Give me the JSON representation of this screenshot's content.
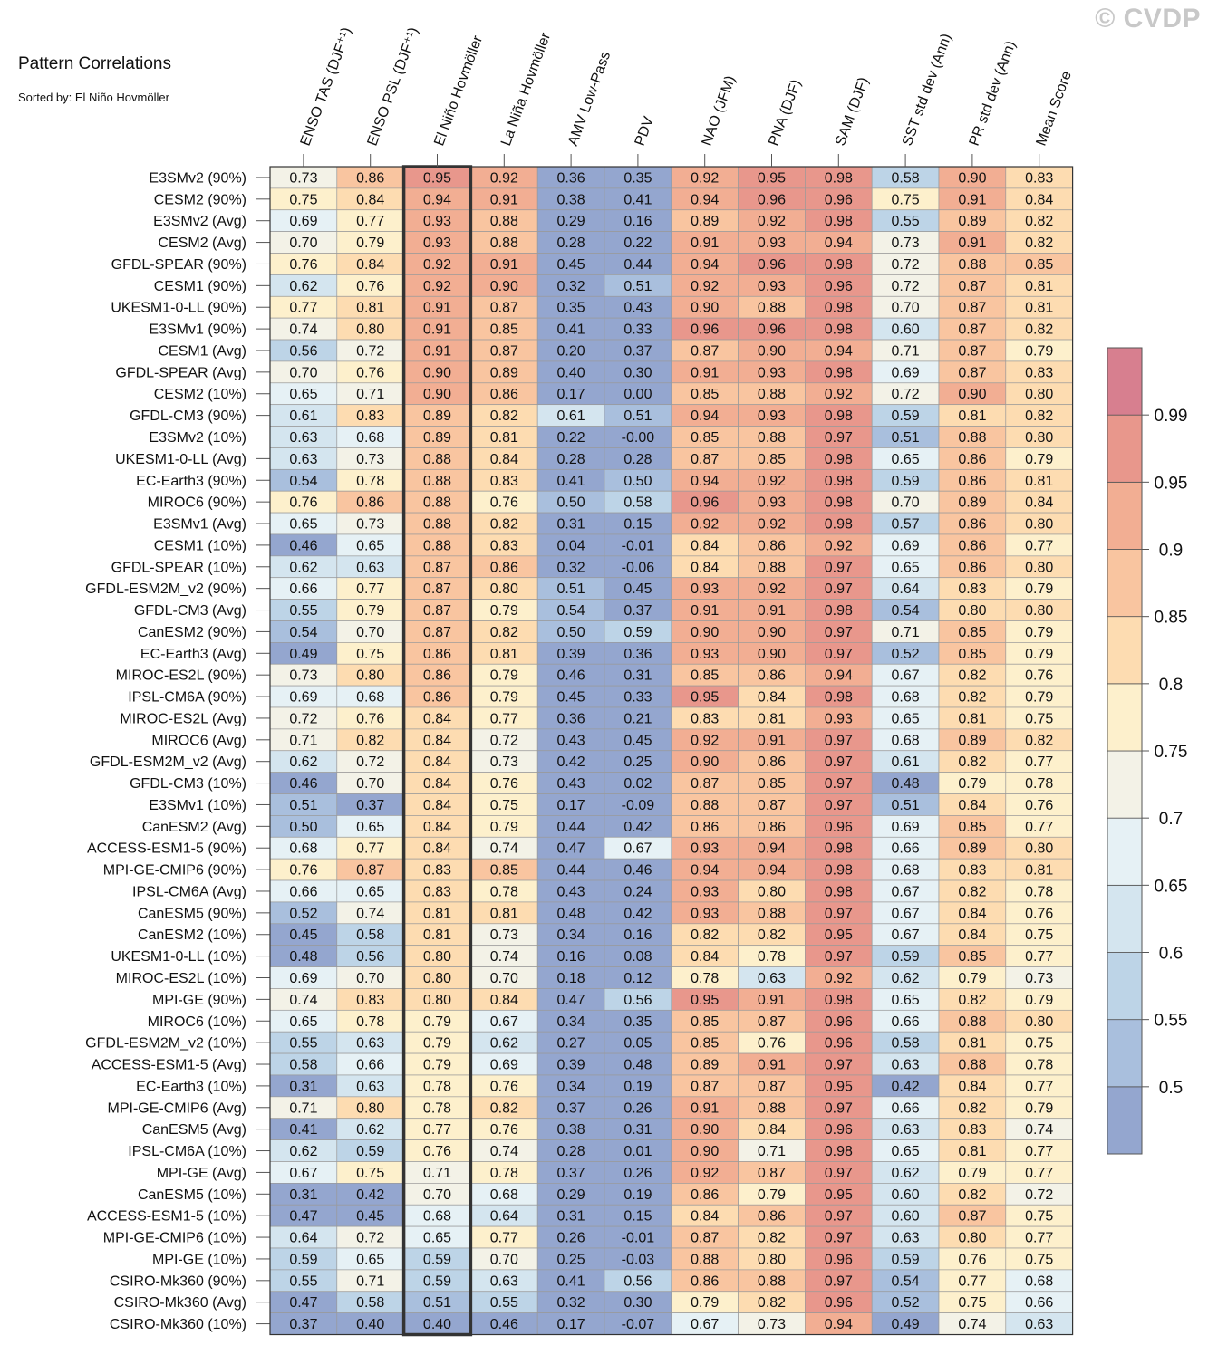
{
  "chart_data": {
    "type": "heatmap",
    "title": "Pattern Correlations",
    "subtitle": "Sorted by: El Niño Hovmöller",
    "watermark": "© CVDP",
    "highlighted_column": "El Niño Hovmöller",
    "columns": [
      "ENSO TAS (DJF⁺¹)",
      "ENSO PSL (DJF⁺¹)",
      "El Niño Hovmöller",
      "La Niña Hovmöller",
      "AMV Low-Pass",
      "PDV",
      "NAO (JFM)",
      "PNA (DJF)",
      "SAM (DJF)",
      "SST std dev (Ann)",
      "PR std dev (Ann)",
      "Mean Score"
    ],
    "rows": [
      {
        "label": "E3SMv2 (90%)",
        "values": [
          "0.73",
          "0.86",
          "0.95",
          "0.92",
          "0.36",
          "0.35",
          "0.92",
          "0.95",
          "0.98",
          "0.58",
          "0.90",
          "0.83"
        ]
      },
      {
        "label": "CESM2 (90%)",
        "values": [
          "0.75",
          "0.84",
          "0.94",
          "0.91",
          "0.38",
          "0.41",
          "0.94",
          "0.96",
          "0.96",
          "0.75",
          "0.91",
          "0.84"
        ]
      },
      {
        "label": "E3SMv2 (Avg)",
        "values": [
          "0.69",
          "0.77",
          "0.93",
          "0.88",
          "0.29",
          "0.16",
          "0.89",
          "0.92",
          "0.98",
          "0.55",
          "0.89",
          "0.82"
        ]
      },
      {
        "label": "CESM2 (Avg)",
        "values": [
          "0.70",
          "0.79",
          "0.93",
          "0.88",
          "0.28",
          "0.22",
          "0.91",
          "0.93",
          "0.94",
          "0.73",
          "0.91",
          "0.82"
        ]
      },
      {
        "label": "GFDL-SPEAR (90%)",
        "values": [
          "0.76",
          "0.84",
          "0.92",
          "0.91",
          "0.45",
          "0.44",
          "0.94",
          "0.96",
          "0.98",
          "0.72",
          "0.88",
          "0.85"
        ]
      },
      {
        "label": "CESM1 (90%)",
        "values": [
          "0.62",
          "0.76",
          "0.92",
          "0.90",
          "0.32",
          "0.51",
          "0.92",
          "0.93",
          "0.96",
          "0.72",
          "0.87",
          "0.81"
        ]
      },
      {
        "label": "UKESM1-0-LL (90%)",
        "values": [
          "0.77",
          "0.81",
          "0.91",
          "0.87",
          "0.35",
          "0.43",
          "0.90",
          "0.88",
          "0.98",
          "0.70",
          "0.87",
          "0.81"
        ]
      },
      {
        "label": "E3SMv1 (90%)",
        "values": [
          "0.74",
          "0.80",
          "0.91",
          "0.85",
          "0.41",
          "0.33",
          "0.96",
          "0.96",
          "0.98",
          "0.60",
          "0.87",
          "0.82"
        ]
      },
      {
        "label": "CESM1 (Avg)",
        "values": [
          "0.56",
          "0.72",
          "0.91",
          "0.87",
          "0.20",
          "0.37",
          "0.87",
          "0.90",
          "0.94",
          "0.71",
          "0.87",
          "0.79"
        ]
      },
      {
        "label": "GFDL-SPEAR (Avg)",
        "values": [
          "0.70",
          "0.76",
          "0.90",
          "0.89",
          "0.40",
          "0.30",
          "0.91",
          "0.93",
          "0.98",
          "0.69",
          "0.87",
          "0.83"
        ]
      },
      {
        "label": "CESM2 (10%)",
        "values": [
          "0.65",
          "0.71",
          "0.90",
          "0.86",
          "0.17",
          "0.00",
          "0.85",
          "0.88",
          "0.92",
          "0.72",
          "0.90",
          "0.80"
        ]
      },
      {
        "label": "GFDL-CM3 (90%)",
        "values": [
          "0.61",
          "0.83",
          "0.89",
          "0.82",
          "0.61",
          "0.51",
          "0.94",
          "0.93",
          "0.98",
          "0.59",
          "0.81",
          "0.82"
        ]
      },
      {
        "label": "E3SMv2 (10%)",
        "values": [
          "0.63",
          "0.68",
          "0.89",
          "0.81",
          "0.22",
          "-0.00",
          "0.85",
          "0.88",
          "0.97",
          "0.51",
          "0.88",
          "0.80"
        ]
      },
      {
        "label": "UKESM1-0-LL (Avg)",
        "values": [
          "0.63",
          "0.73",
          "0.88",
          "0.84",
          "0.28",
          "0.28",
          "0.87",
          "0.85",
          "0.98",
          "0.65",
          "0.86",
          "0.79"
        ]
      },
      {
        "label": "EC-Earth3 (90%)",
        "values": [
          "0.54",
          "0.78",
          "0.88",
          "0.83",
          "0.41",
          "0.50",
          "0.94",
          "0.92",
          "0.98",
          "0.59",
          "0.86",
          "0.81"
        ]
      },
      {
        "label": "MIROC6 (90%)",
        "values": [
          "0.76",
          "0.86",
          "0.88",
          "0.76",
          "0.50",
          "0.58",
          "0.96",
          "0.93",
          "0.98",
          "0.70",
          "0.89",
          "0.84"
        ]
      },
      {
        "label": "E3SMv1 (Avg)",
        "values": [
          "0.65",
          "0.73",
          "0.88",
          "0.82",
          "0.31",
          "0.15",
          "0.92",
          "0.92",
          "0.98",
          "0.57",
          "0.86",
          "0.80"
        ]
      },
      {
        "label": "CESM1 (10%)",
        "values": [
          "0.46",
          "0.65",
          "0.88",
          "0.83",
          "0.04",
          "-0.01",
          "0.84",
          "0.86",
          "0.92",
          "0.69",
          "0.86",
          "0.77"
        ]
      },
      {
        "label": "GFDL-SPEAR (10%)",
        "values": [
          "0.62",
          "0.63",
          "0.87",
          "0.86",
          "0.32",
          "-0.06",
          "0.84",
          "0.88",
          "0.97",
          "0.65",
          "0.86",
          "0.80"
        ]
      },
      {
        "label": "GFDL-ESM2M_v2 (90%)",
        "values": [
          "0.66",
          "0.77",
          "0.87",
          "0.80",
          "0.51",
          "0.45",
          "0.93",
          "0.92",
          "0.97",
          "0.64",
          "0.83",
          "0.79"
        ]
      },
      {
        "label": "GFDL-CM3 (Avg)",
        "values": [
          "0.55",
          "0.79",
          "0.87",
          "0.79",
          "0.54",
          "0.37",
          "0.91",
          "0.91",
          "0.98",
          "0.54",
          "0.80",
          "0.80"
        ]
      },
      {
        "label": "CanESM2 (90%)",
        "values": [
          "0.54",
          "0.70",
          "0.87",
          "0.82",
          "0.50",
          "0.59",
          "0.90",
          "0.90",
          "0.97",
          "0.71",
          "0.85",
          "0.79"
        ]
      },
      {
        "label": "EC-Earth3 (Avg)",
        "values": [
          "0.49",
          "0.75",
          "0.86",
          "0.81",
          "0.39",
          "0.36",
          "0.93",
          "0.90",
          "0.97",
          "0.52",
          "0.85",
          "0.79"
        ]
      },
      {
        "label": "MIROC-ES2L (90%)",
        "values": [
          "0.73",
          "0.80",
          "0.86",
          "0.79",
          "0.46",
          "0.31",
          "0.85",
          "0.86",
          "0.94",
          "0.67",
          "0.82",
          "0.76"
        ]
      },
      {
        "label": "IPSL-CM6A (90%)",
        "values": [
          "0.69",
          "0.68",
          "0.86",
          "0.79",
          "0.45",
          "0.33",
          "0.95",
          "0.84",
          "0.98",
          "0.68",
          "0.82",
          "0.79"
        ]
      },
      {
        "label": "MIROC-ES2L (Avg)",
        "values": [
          "0.72",
          "0.76",
          "0.84",
          "0.77",
          "0.36",
          "0.21",
          "0.83",
          "0.81",
          "0.93",
          "0.65",
          "0.81",
          "0.75"
        ]
      },
      {
        "label": "MIROC6 (Avg)",
        "values": [
          "0.71",
          "0.82",
          "0.84",
          "0.72",
          "0.43",
          "0.45",
          "0.92",
          "0.91",
          "0.97",
          "0.68",
          "0.89",
          "0.82"
        ]
      },
      {
        "label": "GFDL-ESM2M_v2 (Avg)",
        "values": [
          "0.62",
          "0.72",
          "0.84",
          "0.73",
          "0.42",
          "0.25",
          "0.90",
          "0.86",
          "0.97",
          "0.61",
          "0.82",
          "0.77"
        ]
      },
      {
        "label": "GFDL-CM3 (10%)",
        "values": [
          "0.46",
          "0.70",
          "0.84",
          "0.76",
          "0.43",
          "0.02",
          "0.87",
          "0.85",
          "0.97",
          "0.48",
          "0.79",
          "0.78"
        ]
      },
      {
        "label": "E3SMv1 (10%)",
        "values": [
          "0.51",
          "0.37",
          "0.84",
          "0.75",
          "0.17",
          "-0.09",
          "0.88",
          "0.87",
          "0.97",
          "0.51",
          "0.84",
          "0.76"
        ]
      },
      {
        "label": "CanESM2 (Avg)",
        "values": [
          "0.50",
          "0.65",
          "0.84",
          "0.79",
          "0.44",
          "0.42",
          "0.86",
          "0.86",
          "0.96",
          "0.69",
          "0.85",
          "0.77"
        ]
      },
      {
        "label": "ACCESS-ESM1-5 (90%)",
        "values": [
          "0.68",
          "0.77",
          "0.84",
          "0.74",
          "0.47",
          "0.67",
          "0.93",
          "0.94",
          "0.98",
          "0.66",
          "0.89",
          "0.80"
        ]
      },
      {
        "label": "MPI-GE-CMIP6 (90%)",
        "values": [
          "0.76",
          "0.87",
          "0.83",
          "0.85",
          "0.44",
          "0.46",
          "0.94",
          "0.94",
          "0.98",
          "0.68",
          "0.83",
          "0.81"
        ]
      },
      {
        "label": "IPSL-CM6A (Avg)",
        "values": [
          "0.66",
          "0.65",
          "0.83",
          "0.78",
          "0.43",
          "0.24",
          "0.93",
          "0.80",
          "0.98",
          "0.67",
          "0.82",
          "0.78"
        ]
      },
      {
        "label": "CanESM5 (90%)",
        "values": [
          "0.52",
          "0.74",
          "0.81",
          "0.81",
          "0.48",
          "0.42",
          "0.93",
          "0.88",
          "0.97",
          "0.67",
          "0.84",
          "0.76"
        ]
      },
      {
        "label": "CanESM2 (10%)",
        "values": [
          "0.45",
          "0.58",
          "0.81",
          "0.73",
          "0.34",
          "0.16",
          "0.82",
          "0.82",
          "0.95",
          "0.67",
          "0.84",
          "0.75"
        ]
      },
      {
        "label": "UKESM1-0-LL (10%)",
        "values": [
          "0.48",
          "0.56",
          "0.80",
          "0.74",
          "0.16",
          "0.08",
          "0.84",
          "0.78",
          "0.97",
          "0.59",
          "0.85",
          "0.77"
        ]
      },
      {
        "label": "MIROC-ES2L (10%)",
        "values": [
          "0.69",
          "0.70",
          "0.80",
          "0.70",
          "0.18",
          "0.12",
          "0.78",
          "0.63",
          "0.92",
          "0.62",
          "0.79",
          "0.73"
        ]
      },
      {
        "label": "MPI-GE (90%)",
        "values": [
          "0.74",
          "0.83",
          "0.80",
          "0.84",
          "0.47",
          "0.56",
          "0.95",
          "0.91",
          "0.98",
          "0.65",
          "0.82",
          "0.79"
        ]
      },
      {
        "label": "MIROC6 (10%)",
        "values": [
          "0.65",
          "0.78",
          "0.79",
          "0.67",
          "0.34",
          "0.35",
          "0.85",
          "0.87",
          "0.96",
          "0.66",
          "0.88",
          "0.80"
        ]
      },
      {
        "label": "GFDL-ESM2M_v2 (10%)",
        "values": [
          "0.55",
          "0.63",
          "0.79",
          "0.62",
          "0.27",
          "0.05",
          "0.85",
          "0.76",
          "0.96",
          "0.58",
          "0.81",
          "0.75"
        ]
      },
      {
        "label": "ACCESS-ESM1-5 (Avg)",
        "values": [
          "0.58",
          "0.66",
          "0.79",
          "0.69",
          "0.39",
          "0.48",
          "0.89",
          "0.91",
          "0.97",
          "0.63",
          "0.88",
          "0.78"
        ]
      },
      {
        "label": "EC-Earth3 (10%)",
        "values": [
          "0.31",
          "0.63",
          "0.78",
          "0.76",
          "0.34",
          "0.19",
          "0.87",
          "0.87",
          "0.95",
          "0.42",
          "0.84",
          "0.77"
        ]
      },
      {
        "label": "MPI-GE-CMIP6 (Avg)",
        "values": [
          "0.71",
          "0.80",
          "0.78",
          "0.82",
          "0.37",
          "0.26",
          "0.91",
          "0.88",
          "0.97",
          "0.66",
          "0.82",
          "0.79"
        ]
      },
      {
        "label": "CanESM5 (Avg)",
        "values": [
          "0.41",
          "0.62",
          "0.77",
          "0.76",
          "0.38",
          "0.31",
          "0.90",
          "0.84",
          "0.96",
          "0.63",
          "0.83",
          "0.74"
        ]
      },
      {
        "label": "IPSL-CM6A (10%)",
        "values": [
          "0.62",
          "0.59",
          "0.76",
          "0.74",
          "0.28",
          "0.01",
          "0.90",
          "0.71",
          "0.98",
          "0.65",
          "0.81",
          "0.77"
        ]
      },
      {
        "label": "MPI-GE (Avg)",
        "values": [
          "0.67",
          "0.75",
          "0.71",
          "0.78",
          "0.37",
          "0.26",
          "0.92",
          "0.87",
          "0.97",
          "0.62",
          "0.79",
          "0.77"
        ]
      },
      {
        "label": "CanESM5 (10%)",
        "values": [
          "0.31",
          "0.42",
          "0.70",
          "0.68",
          "0.29",
          "0.19",
          "0.86",
          "0.79",
          "0.95",
          "0.60",
          "0.82",
          "0.72"
        ]
      },
      {
        "label": "ACCESS-ESM1-5 (10%)",
        "values": [
          "0.47",
          "0.45",
          "0.68",
          "0.64",
          "0.31",
          "0.15",
          "0.84",
          "0.86",
          "0.97",
          "0.60",
          "0.87",
          "0.75"
        ]
      },
      {
        "label": "MPI-GE-CMIP6 (10%)",
        "values": [
          "0.64",
          "0.72",
          "0.65",
          "0.77",
          "0.26",
          "-0.01",
          "0.87",
          "0.82",
          "0.97",
          "0.63",
          "0.80",
          "0.77"
        ]
      },
      {
        "label": "MPI-GE (10%)",
        "values": [
          "0.59",
          "0.65",
          "0.59",
          "0.70",
          "0.25",
          "-0.03",
          "0.88",
          "0.80",
          "0.96",
          "0.59",
          "0.76",
          "0.75"
        ]
      },
      {
        "label": "CSIRO-Mk360 (90%)",
        "values": [
          "0.55",
          "0.71",
          "0.59",
          "0.63",
          "0.41",
          "0.56",
          "0.86",
          "0.88",
          "0.97",
          "0.54",
          "0.77",
          "0.68"
        ]
      },
      {
        "label": "CSIRO-Mk360 (Avg)",
        "values": [
          "0.47",
          "0.58",
          "0.51",
          "0.55",
          "0.32",
          "0.30",
          "0.79",
          "0.82",
          "0.96",
          "0.52",
          "0.75",
          "0.66"
        ]
      },
      {
        "label": "CSIRO-Mk360 (10%)",
        "values": [
          "0.37",
          "0.40",
          "0.40",
          "0.46",
          "0.17",
          "-0.07",
          "0.67",
          "0.73",
          "0.94",
          "0.49",
          "0.74",
          "0.63"
        ]
      }
    ],
    "colorbar": {
      "levels": [
        0.5,
        0.55,
        0.6,
        0.65,
        0.7,
        0.75,
        0.8,
        0.85,
        0.9,
        0.95,
        0.99
      ],
      "labels": [
        "0.5",
        "0.55",
        "0.6",
        "0.65",
        "0.7",
        "0.75",
        "0.8",
        "0.85",
        "0.9",
        "0.95",
        "0.99"
      ],
      "colors": [
        "#94a6cf",
        "#a9bfdd",
        "#bdd4e7",
        "#d4e5ef",
        "#e6f1f5",
        "#f3f2e7",
        "#fdf0cc",
        "#fddcb1",
        "#f9c5a0",
        "#f2ae93",
        "#e8978c",
        "#d77f8f"
      ]
    }
  }
}
